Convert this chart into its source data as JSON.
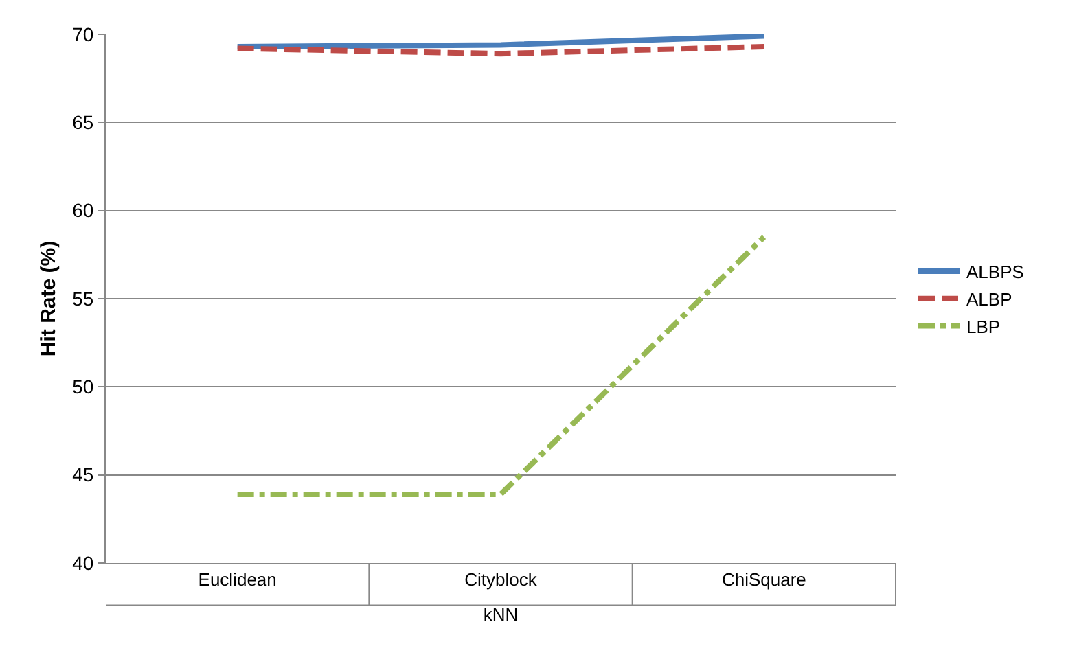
{
  "chart_data": {
    "type": "line",
    "ylabel": "Hit Rate (%)",
    "xlabel": "kNN",
    "categories": [
      "Euclidean",
      "Cityblock",
      "ChiSquare"
    ],
    "series": [
      {
        "name": "ALBPS",
        "color": "#4a7ebb",
        "values": [
          69.3,
          69.4,
          69.9
        ],
        "line_style": "solid"
      },
      {
        "name": "ALBP",
        "color": "#be4b48",
        "values": [
          69.2,
          68.9,
          69.3
        ],
        "line_style": "dashed"
      },
      {
        "name": "LBP",
        "color": "#98b954",
        "values": [
          43.9,
          43.9,
          58.5
        ],
        "line_style": "dashdot"
      }
    ],
    "ylim": [
      40,
      70
    ],
    "yticks": [
      40,
      45,
      50,
      55,
      60,
      65,
      70
    ],
    "grid": "y",
    "legend": "right",
    "marker": "none"
  }
}
